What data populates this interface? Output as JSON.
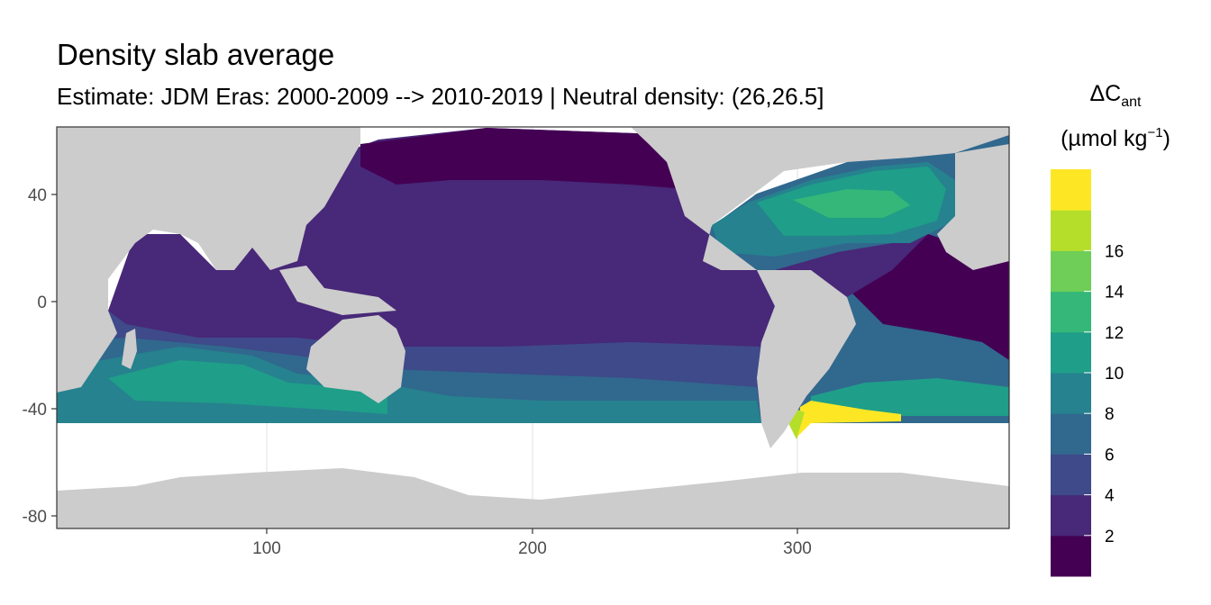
{
  "title": "Density slab average",
  "subtitle": "Estimate: JDM Eras: 2000-2009 --> 2010-2019 | Neutral density: (26,26.5]",
  "axes": {
    "x_ticks": [
      "100",
      "200",
      "300"
    ],
    "y_ticks": [
      "40",
      "0",
      "-40",
      "-80"
    ]
  },
  "legend": {
    "title_symbol": "ΔC",
    "title_subscript": "ant",
    "unit_prefix": "(µmol kg",
    "unit_exponent": "−1",
    "unit_suffix": ")",
    "tick_labels": [
      "2",
      "4",
      "6",
      "8",
      "10",
      "12",
      "14",
      "16"
    ],
    "colors": [
      "#440154",
      "#482878",
      "#3e4a89",
      "#31688e",
      "#26828e",
      "#1f9e89",
      "#35b779",
      "#6ece58",
      "#b5de2b",
      "#fde725"
    ]
  },
  "colors": {
    "land": "#cccccc",
    "grid": "#ebebeb",
    "panel_border": "#333333"
  }
}
